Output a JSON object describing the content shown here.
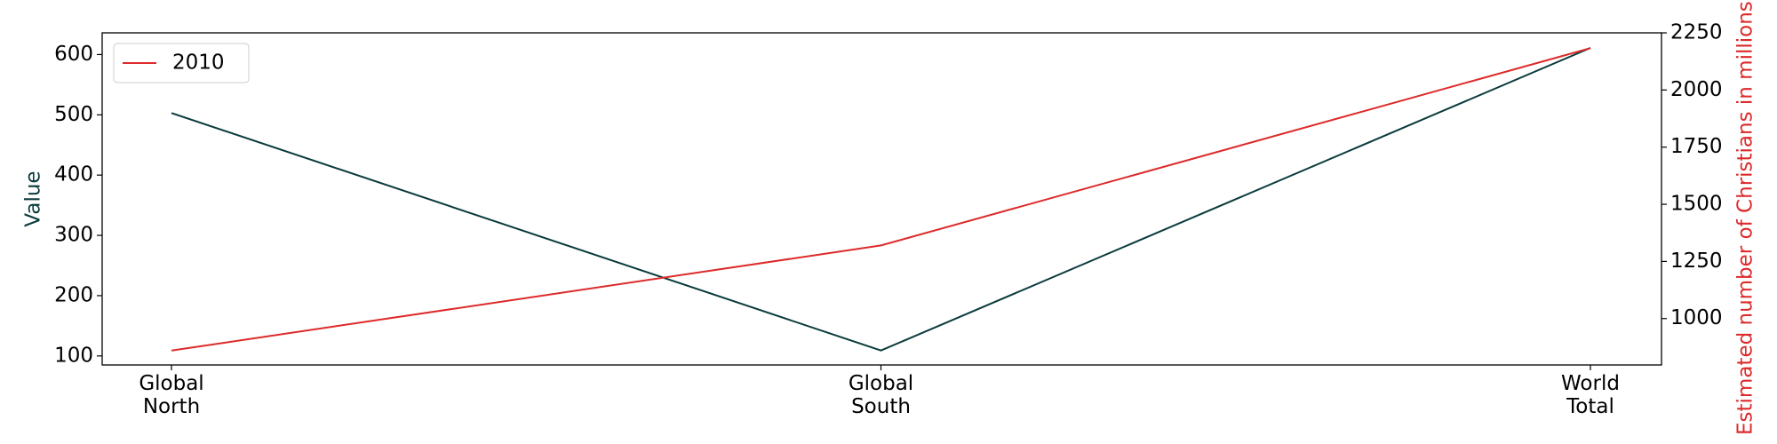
{
  "chart_data": {
    "type": "line",
    "categories": [
      "Global North",
      "Global South",
      "World Total"
    ],
    "ylabel": "Value",
    "y2label": "Estimated number of Christians in millions",
    "series": [
      {
        "color": "#0b3b3c",
        "values": [
          503,
          109,
          611
        ]
      },
      {
        "name": "2010",
        "color": "#dd2a2a",
        "axis": "y2",
        "values": [
          860,
          1320,
          2183
        ]
      }
    ],
    "ylim": [
      85,
      636
    ],
    "yticks": [
      100,
      200,
      300,
      400,
      500,
      600
    ],
    "y2lim": [
      797,
      2250
    ],
    "y2ticks": [
      1000,
      1250,
      1500,
      1750,
      2000,
      2250
    ],
    "legend": "upper left"
  }
}
